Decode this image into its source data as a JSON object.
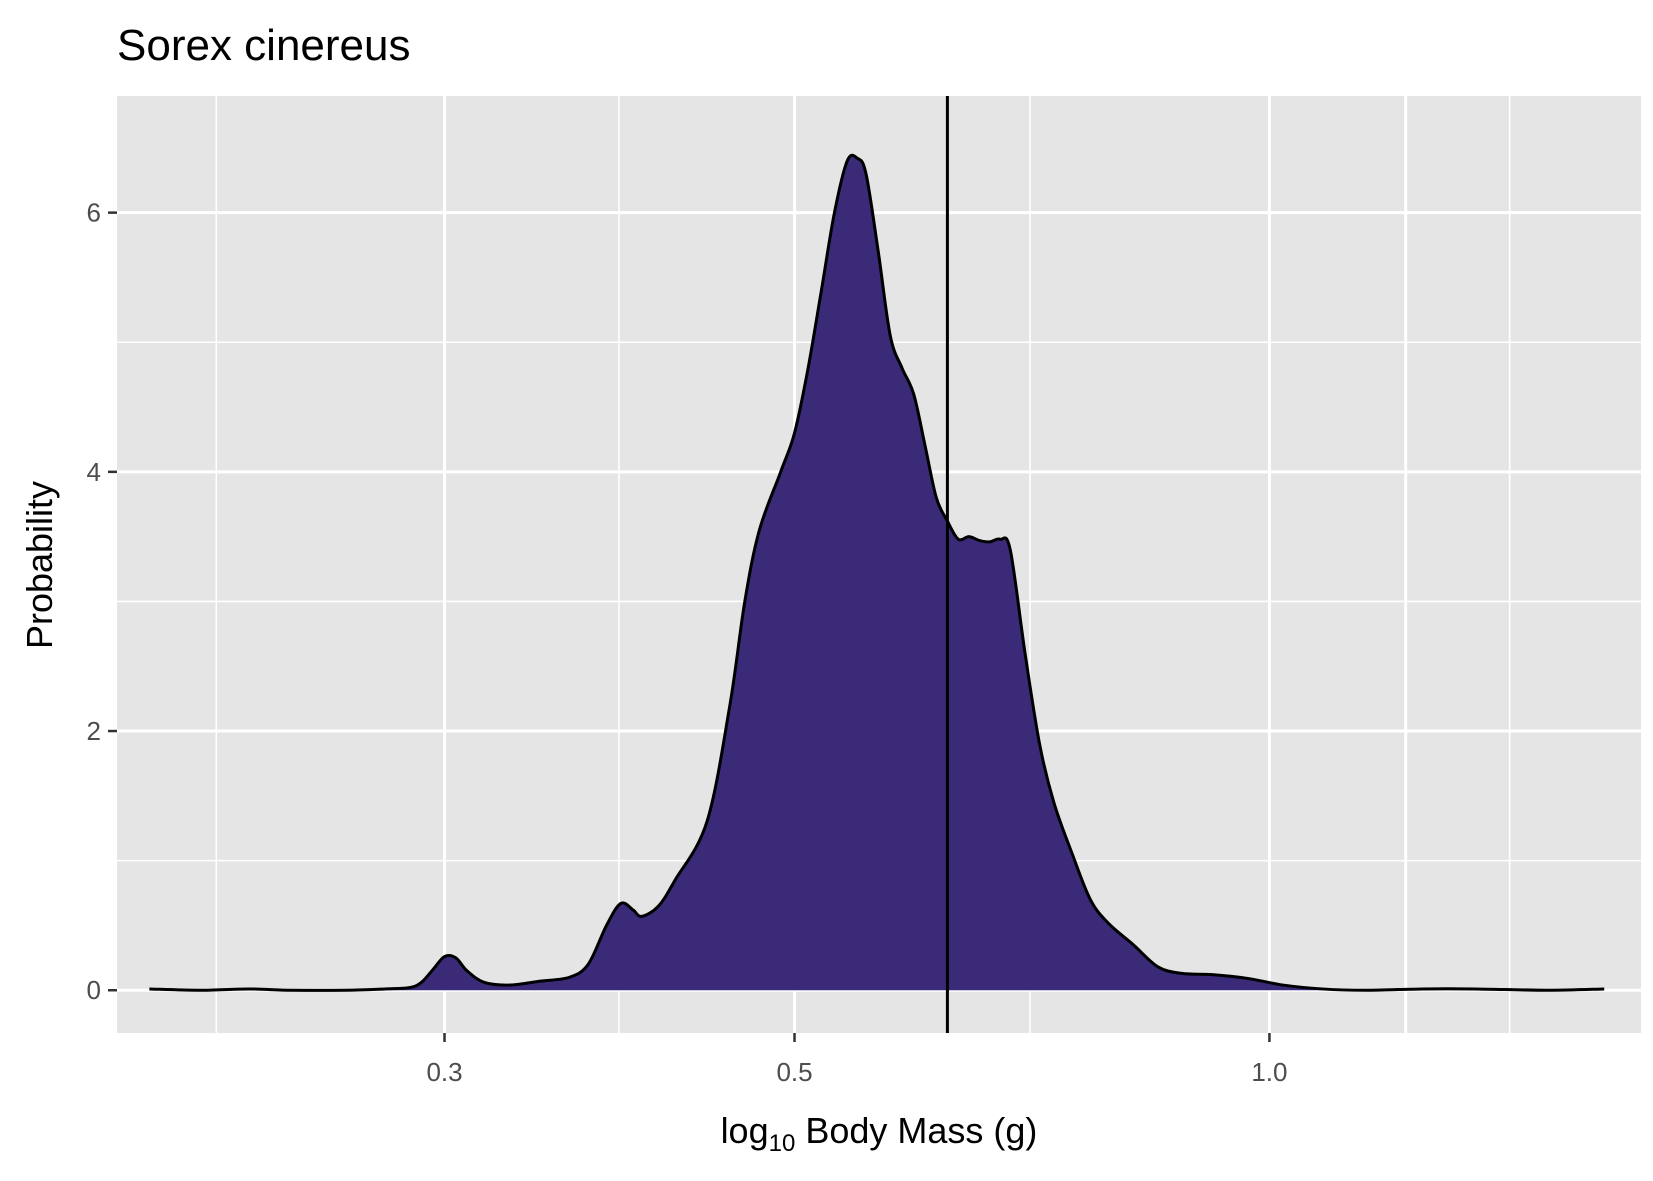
{
  "chart_data": {
    "type": "area",
    "title": "Sorex cinereus",
    "xlabel": {
      "prefix": "log",
      "subscript": "10",
      "rest": " Body Mass ",
      "open_paren": "(",
      "unit": "g",
      "close_paren": ")"
    },
    "ylabel": "Probability",
    "x_scale": "log10",
    "xlim": [
      0.186,
      1.72
    ],
    "ylim": [
      -0.33,
      6.9
    ],
    "x_ticks": [
      {
        "value": 0.3,
        "label": "0.3"
      },
      {
        "value": 0.5,
        "label": "0.5"
      },
      {
        "value": 1.0,
        "label": "1.0"
      }
    ],
    "x_minor_gridlines": [
      0.215,
      0.387,
      0.705,
      1.42
    ],
    "x_extra_gridlines": [
      1.22
    ],
    "y_ticks": [
      {
        "value": 0,
        "label": "0"
      },
      {
        "value": 2,
        "label": "2"
      },
      {
        "value": 4,
        "label": "4"
      },
      {
        "value": 6,
        "label": "6"
      }
    ],
    "y_minor_gridlines": [
      1,
      3,
      5
    ],
    "grid": true,
    "vline": 0.625,
    "fill_color": "#3a2a78",
    "line_color": "#000000",
    "panel_color": "#e5e5e5",
    "series": [
      {
        "values": [
          [
            0.195,
            0.01
          ],
          [
            0.21,
            0.0
          ],
          [
            0.225,
            0.01
          ],
          [
            0.24,
            0.0
          ],
          [
            0.26,
            0.0
          ],
          [
            0.275,
            0.01
          ],
          [
            0.285,
            0.02
          ],
          [
            0.29,
            0.06
          ],
          [
            0.295,
            0.16
          ],
          [
            0.3,
            0.26
          ],
          [
            0.305,
            0.25
          ],
          [
            0.31,
            0.15
          ],
          [
            0.318,
            0.06
          ],
          [
            0.33,
            0.04
          ],
          [
            0.345,
            0.07
          ],
          [
            0.36,
            0.1
          ],
          [
            0.37,
            0.2
          ],
          [
            0.38,
            0.5
          ],
          [
            0.388,
            0.67
          ],
          [
            0.395,
            0.62
          ],
          [
            0.4,
            0.57
          ],
          [
            0.41,
            0.65
          ],
          [
            0.42,
            0.85
          ],
          [
            0.44,
            1.3
          ],
          [
            0.455,
            2.2
          ],
          [
            0.465,
            3.0
          ],
          [
            0.475,
            3.55
          ],
          [
            0.49,
            4.0
          ],
          [
            0.5,
            4.3
          ],
          [
            0.51,
            4.8
          ],
          [
            0.52,
            5.4
          ],
          [
            0.53,
            6.0
          ],
          [
            0.54,
            6.4
          ],
          [
            0.548,
            6.42
          ],
          [
            0.555,
            6.3
          ],
          [
            0.565,
            5.7
          ],
          [
            0.575,
            5.05
          ],
          [
            0.585,
            4.8
          ],
          [
            0.595,
            4.6
          ],
          [
            0.605,
            4.2
          ],
          [
            0.615,
            3.8
          ],
          [
            0.625,
            3.62
          ],
          [
            0.635,
            3.48
          ],
          [
            0.645,
            3.5
          ],
          [
            0.655,
            3.47
          ],
          [
            0.665,
            3.46
          ],
          [
            0.675,
            3.48
          ],
          [
            0.685,
            3.4
          ],
          [
            0.7,
            2.6
          ],
          [
            0.715,
            1.9
          ],
          [
            0.73,
            1.45
          ],
          [
            0.75,
            1.05
          ],
          [
            0.77,
            0.7
          ],
          [
            0.79,
            0.52
          ],
          [
            0.82,
            0.35
          ],
          [
            0.85,
            0.18
          ],
          [
            0.88,
            0.13
          ],
          [
            0.92,
            0.12
          ],
          [
            0.97,
            0.09
          ],
          [
            1.02,
            0.04
          ],
          [
            1.08,
            0.01
          ],
          [
            1.15,
            0.0
          ],
          [
            1.25,
            0.01
          ],
          [
            1.35,
            0.01
          ],
          [
            1.5,
            0.0
          ],
          [
            1.63,
            0.01
          ]
        ]
      }
    ]
  }
}
